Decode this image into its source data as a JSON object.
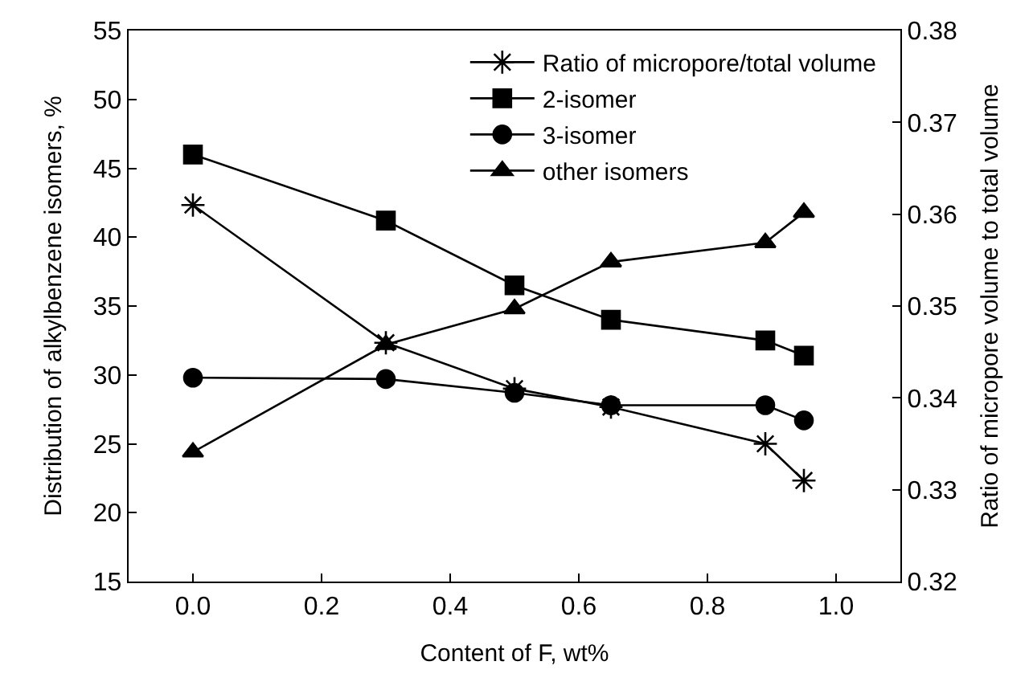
{
  "chart_data": {
    "type": "line",
    "xlabel": "Content of F, wt%",
    "ylabel": "Distribution of alkylbenzene isomers, %",
    "y2label": "Ratio of micropore volume to total volume",
    "x": [
      0.0,
      0.3,
      0.5,
      0.65,
      0.89,
      0.95
    ],
    "series": [
      {
        "name": "Ratio of micropore/total volume",
        "color": "#000000",
        "marker": "cross",
        "axis": "y2",
        "values": [
          0.361,
          0.346,
          0.341,
          0.339,
          0.335,
          0.331
        ]
      },
      {
        "name": "2-isomer",
        "color": "#000000",
        "marker": "square",
        "values": [
          46.0,
          41.2,
          36.5,
          34.0,
          32.5,
          31.4
        ]
      },
      {
        "name": "3-isomer",
        "color": "#000000",
        "marker": "circle",
        "values": [
          29.8,
          29.7,
          28.7,
          27.8,
          27.8,
          26.7
        ]
      },
      {
        "name": "other isomers",
        "color": "#000000",
        "marker": "triangle",
        "values": [
          24.4,
          32.2,
          34.8,
          38.2,
          39.6,
          41.8
        ]
      }
    ],
    "xlim": [
      -0.1,
      1.1
    ],
    "xticks": [
      {
        "value": 0,
        "label": "0.0"
      },
      0.2,
      0.4,
      0.6,
      0.8,
      {
        "value": 1,
        "label": "1.0"
      }
    ],
    "ylim": [
      15,
      55
    ],
    "yticks": [
      15,
      20,
      25,
      30,
      35,
      40,
      45,
      50,
      55
    ],
    "y2lim": [
      0.32,
      0.38
    ],
    "y2ticks": [
      0.32,
      0.33,
      0.34,
      0.35,
      0.36,
      0.37,
      0.38
    ],
    "legend": "top right",
    "grid": false,
    "line_style": "solid"
  }
}
